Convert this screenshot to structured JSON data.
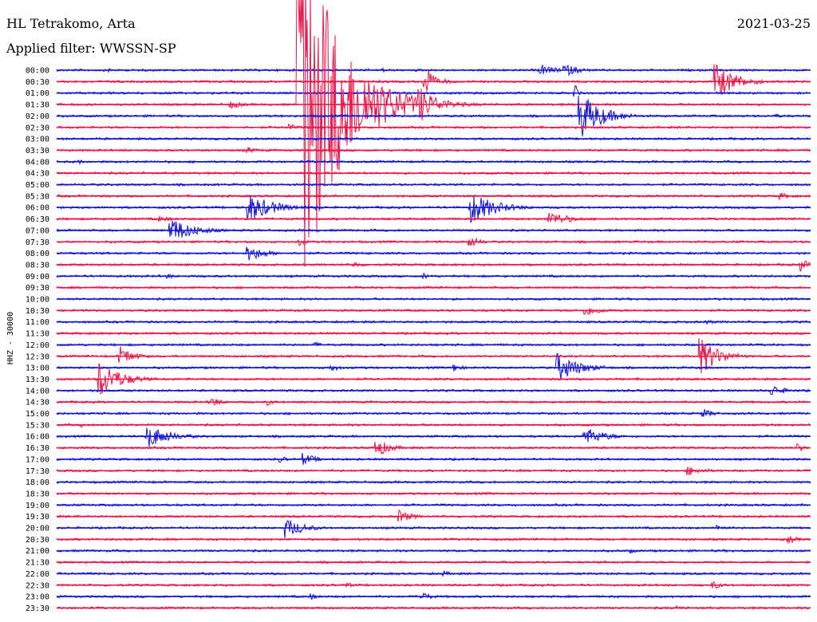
{
  "header": {
    "station": "HL Tetrakomo, Arta",
    "filter": "Applied filter: WWSSN-SP",
    "date": "2021-03-25"
  },
  "chart_data": {
    "type": "line",
    "title": "HL Tetrakomo, Arta",
    "subtitle": "Applied filter: WWSSN-SP",
    "date": "2021-03-25",
    "ylabel": "HHZ - 30000",
    "row_labels": [
      "00:00",
      "00:30",
      "01:00",
      "01:30",
      "02:00",
      "02:30",
      "03:00",
      "03:30",
      "04:00",
      "04:30",
      "05:00",
      "05:30",
      "06:00",
      "06:30",
      "07:00",
      "07:30",
      "08:00",
      "08:30",
      "09:00",
      "09:30",
      "10:00",
      "10:30",
      "11:00",
      "11:30",
      "12:00",
      "12:30",
      "13:00",
      "13:30",
      "14:00",
      "14:30",
      "15:00",
      "15:30",
      "16:00",
      "16:30",
      "17:00",
      "17:30",
      "18:00",
      "18:30",
      "19:00",
      "19:30",
      "20:00",
      "20:30",
      "21:00",
      "21:30",
      "22:00",
      "22:30",
      "23:00",
      "23:30"
    ],
    "trace_colors": [
      "#1414d4",
      "#ee1448"
    ],
    "x_range_minutes": [
      0,
      30
    ],
    "events": [
      {
        "row": 0,
        "t": 2.1,
        "amp": 0.5,
        "dur": 0.9
      },
      {
        "row": 0,
        "t": 12.9,
        "amp": 0.6,
        "dur": 0.9
      },
      {
        "row": 0,
        "t": 19.2,
        "amp": 1.4,
        "dur": 1.5
      },
      {
        "row": 0,
        "t": 20.2,
        "amp": 1.5,
        "dur": 1.4
      },
      {
        "row": 1,
        "t": 15.3,
        "amp": 0.7,
        "dur": 1.5
      },
      {
        "row": 1,
        "t": 14.6,
        "amp": 6.0,
        "dur": 0.6
      },
      {
        "row": 1,
        "t": 26.2,
        "amp": 4.5,
        "dur": 1.8
      },
      {
        "row": 2,
        "t": 20.6,
        "amp": 2.6,
        "dur": 0.4
      },
      {
        "row": 3,
        "t": 6.9,
        "amp": 1.0,
        "dur": 1.2
      },
      {
        "row": 3,
        "t": 9.6,
        "amp": 50.0,
        "dur": 3.2
      },
      {
        "row": 3,
        "t": 14.4,
        "amp": 4.5,
        "dur": 1.6
      },
      {
        "row": 4,
        "t": 20.8,
        "amp": 6.0,
        "dur": 1.8
      },
      {
        "row": 4,
        "t": 28.6,
        "amp": 0.5,
        "dur": 1.2
      },
      {
        "row": 5,
        "t": 9.2,
        "amp": 1.0,
        "dur": 0.8
      },
      {
        "row": 7,
        "t": 7.6,
        "amp": 0.8,
        "dur": 1.0
      },
      {
        "row": 8,
        "t": 0.9,
        "amp": 0.6,
        "dur": 0.6
      },
      {
        "row": 11,
        "t": 28.7,
        "amp": 0.9,
        "dur": 1.2
      },
      {
        "row": 12,
        "t": 7.6,
        "amp": 3.5,
        "dur": 2.2
      },
      {
        "row": 12,
        "t": 16.4,
        "amp": 4.0,
        "dur": 2.2
      },
      {
        "row": 12,
        "t": 10.3,
        "amp": 0.6,
        "dur": 0.8
      },
      {
        "row": 13,
        "t": 4.1,
        "amp": 0.7,
        "dur": 1.5
      },
      {
        "row": 13,
        "t": 19.6,
        "amp": 1.8,
        "dur": 1.8
      },
      {
        "row": 14,
        "t": 4.5,
        "amp": 3.2,
        "dur": 2.0
      },
      {
        "row": 15,
        "t": 9.6,
        "amp": 1.0,
        "dur": 0.8
      },
      {
        "row": 15,
        "t": 16.4,
        "amp": 1.5,
        "dur": 1.0
      },
      {
        "row": 16,
        "t": 7.6,
        "amp": 2.0,
        "dur": 1.5
      },
      {
        "row": 17,
        "t": 11.8,
        "amp": 0.9,
        "dur": 1.0
      },
      {
        "row": 17,
        "t": 29.6,
        "amp": 1.5,
        "dur": 0.8
      },
      {
        "row": 18,
        "t": 4.4,
        "amp": 0.7,
        "dur": 0.8
      },
      {
        "row": 18,
        "t": 14.6,
        "amp": 0.8,
        "dur": 0.8
      },
      {
        "row": 21,
        "t": 21.0,
        "amp": 1.3,
        "dur": 1.6
      },
      {
        "row": 22,
        "t": 25.9,
        "amp": 0.6,
        "dur": 0.8
      },
      {
        "row": 24,
        "t": 10.3,
        "amp": 0.6,
        "dur": 0.8
      },
      {
        "row": 25,
        "t": 2.5,
        "amp": 2.5,
        "dur": 1.2
      },
      {
        "row": 25,
        "t": 25.6,
        "amp": 4.5,
        "dur": 1.6
      },
      {
        "row": 26,
        "t": 0.8,
        "amp": 0.6,
        "dur": 0.6
      },
      {
        "row": 26,
        "t": 10.9,
        "amp": 0.9,
        "dur": 1.0
      },
      {
        "row": 26,
        "t": 15.8,
        "amp": 1.0,
        "dur": 0.9
      },
      {
        "row": 26,
        "t": 19.9,
        "amp": 3.5,
        "dur": 2.0
      },
      {
        "row": 27,
        "t": 1.7,
        "amp": 4.5,
        "dur": 1.8
      },
      {
        "row": 28,
        "t": 28.4,
        "amp": 1.6,
        "dur": 1.2
      },
      {
        "row": 29,
        "t": 6.1,
        "amp": 1.4,
        "dur": 1.0
      },
      {
        "row": 29,
        "t": 8.4,
        "amp": 0.8,
        "dur": 0.8
      },
      {
        "row": 30,
        "t": 25.7,
        "amp": 1.2,
        "dur": 1.0
      },
      {
        "row": 31,
        "t": 1.0,
        "amp": 0.6,
        "dur": 0.6
      },
      {
        "row": 32,
        "t": 3.6,
        "amp": 2.8,
        "dur": 2.0
      },
      {
        "row": 32,
        "t": 21.0,
        "amp": 2.2,
        "dur": 1.8
      },
      {
        "row": 33,
        "t": 12.7,
        "amp": 2.4,
        "dur": 1.2
      },
      {
        "row": 33,
        "t": 29.5,
        "amp": 1.2,
        "dur": 0.6
      },
      {
        "row": 34,
        "t": 9.8,
        "amp": 1.5,
        "dur": 1.2
      },
      {
        "row": 34,
        "t": 8.9,
        "amp": 0.8,
        "dur": 0.8
      },
      {
        "row": 35,
        "t": 25.1,
        "amp": 1.2,
        "dur": 1.6
      },
      {
        "row": 38,
        "t": 7.8,
        "amp": 0.3,
        "dur": 0.4
      },
      {
        "row": 39,
        "t": 13.6,
        "amp": 1.6,
        "dur": 1.2
      },
      {
        "row": 40,
        "t": 9.1,
        "amp": 2.4,
        "dur": 1.6
      },
      {
        "row": 40,
        "t": 26.3,
        "amp": 0.9,
        "dur": 0.8
      },
      {
        "row": 41,
        "t": 29.1,
        "amp": 1.0,
        "dur": 1.0
      },
      {
        "row": 42,
        "t": 22.8,
        "amp": 0.6,
        "dur": 0.8
      },
      {
        "row": 44,
        "t": 15.4,
        "amp": 0.7,
        "dur": 0.8
      },
      {
        "row": 45,
        "t": 11.5,
        "amp": 0.8,
        "dur": 0.8
      },
      {
        "row": 45,
        "t": 26.1,
        "amp": 1.0,
        "dur": 1.0
      },
      {
        "row": 46,
        "t": 14.5,
        "amp": 1.2,
        "dur": 1.0
      },
      {
        "row": 46,
        "t": 10.1,
        "amp": 0.8,
        "dur": 0.8
      },
      {
        "row": 47,
        "t": 24.7,
        "amp": 0.6,
        "dur": 0.8
      }
    ]
  }
}
